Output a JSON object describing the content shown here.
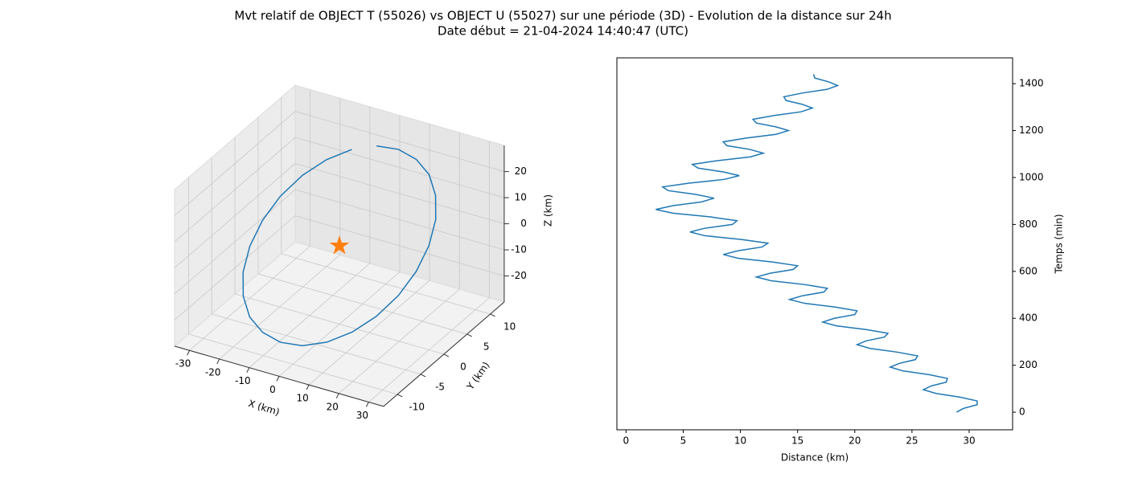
{
  "title": "Mvt relatif de OBJECT T (55026) vs OBJECT U (55027) sur une période (3D) - Evolution de la distance sur 24h",
  "subtitle": "Date début = 21-04-2024 14:40:47 (UTC)",
  "chart_data": [
    {
      "type": "line3d",
      "xlabel": "X (km)",
      "ylabel": "Y (km)",
      "zlabel": "Z (km)",
      "xlim": [
        -35,
        35
      ],
      "ylim": [
        -13,
        13
      ],
      "zlim": [
        -30,
        30
      ],
      "xticks": [
        -30,
        -20,
        -10,
        0,
        10,
        20,
        30
      ],
      "yticks": [
        -10,
        -5,
        0,
        5,
        10
      ],
      "zticks": [
        -20,
        -10,
        0,
        10,
        20
      ],
      "grid": true,
      "color": "#1f77b4",
      "x": [
        0,
        7.8,
        15,
        21.2,
        26,
        29,
        30,
        29,
        26,
        21.2,
        15,
        7.8,
        0,
        -7.8,
        -15,
        -21.2,
        -26,
        -29,
        -30,
        -29,
        -26,
        -21.2,
        -15,
        -7.8
      ],
      "y": [
        8,
        7.7,
        6.9,
        5.7,
        4,
        2.1,
        0,
        -2.1,
        -4,
        -5.7,
        -6.9,
        -7.7,
        -8,
        -7.7,
        -6.9,
        -5.7,
        -4,
        -2.1,
        0,
        2.1,
        4,
        5.7,
        6.9,
        7.7
      ],
      "z": [
        26,
        27.7,
        27.5,
        25.5,
        21.7,
        16.4,
        10,
        3,
        -4.3,
        -11.3,
        -17.5,
        -22.5,
        -26,
        -27.7,
        -27.5,
        -25.5,
        -21.7,
        -16.4,
        -10,
        -3,
        4.3,
        11.3,
        17.5,
        22.5
      ],
      "marker": {
        "x": 0,
        "y": 0,
        "z": 0,
        "color": "#ff7f0e"
      }
    },
    {
      "type": "line",
      "xlabel": "Distance (km)",
      "ylabel": "Temps (min)",
      "xlim": [
        -0.8,
        33.8
      ],
      "ylim": [
        -75,
        1510
      ],
      "xticks": [
        0,
        5,
        10,
        15,
        20,
        25,
        30
      ],
      "yticks": [
        0,
        200,
        400,
        600,
        800,
        1000,
        1200,
        1400
      ],
      "color": "#1f77b4",
      "x": [
        28.9,
        29.5,
        30.7,
        30.7,
        29.2,
        27.1,
        26.0,
        26.7,
        28.0,
        28.1,
        26.5,
        24.2,
        23.1,
        23.9,
        25.3,
        25.5,
        23.7,
        21.3,
        20.2,
        21.0,
        22.6,
        22.9,
        21.0,
        18.4,
        17.2,
        18.2,
        20.0,
        20.2,
        18.3,
        15.6,
        14.3,
        15.4,
        17.3,
        17.6,
        15.6,
        12.7,
        11.4,
        12.6,
        14.6,
        15.0,
        12.8,
        9.8,
        8.5,
        9.8,
        11.9,
        12.4,
        10.1,
        6.9,
        5.6,
        6.9,
        9.3,
        9.7,
        7.4,
        4.1,
        2.6,
        4.1,
        6.6,
        7.7,
        6.1,
        3.7,
        3.2,
        5.5,
        8.6,
        9.9,
        8.5,
        6.3,
        5.8,
        8.0,
        10.9,
        12.0,
        10.8,
        8.8,
        8.5,
        10.5,
        13.1,
        14.2,
        13.1,
        11.4,
        11.1,
        12.9,
        15.3,
        16.3,
        15.4,
        14.0,
        13.8,
        15.4,
        17.6,
        18.5,
        17.7,
        16.5,
        16.4
      ],
      "y": [
        0,
        16,
        32,
        48,
        64,
        80,
        96,
        112,
        128,
        144,
        160,
        176,
        192,
        208,
        224,
        240,
        256,
        272,
        288,
        304,
        320,
        336,
        352,
        368,
        384,
        400,
        416,
        432,
        448,
        464,
        480,
        496,
        512,
        528,
        544,
        560,
        576,
        592,
        608,
        624,
        640,
        656,
        672,
        688,
        704,
        720,
        736,
        752,
        768,
        784,
        800,
        816,
        832,
        848,
        864,
        880,
        896,
        912,
        928,
        944,
        960,
        976,
        992,
        1008,
        1024,
        1040,
        1056,
        1072,
        1088,
        1104,
        1120,
        1136,
        1152,
        1168,
        1184,
        1200,
        1216,
        1232,
        1248,
        1264,
        1280,
        1296,
        1312,
        1328,
        1344,
        1360,
        1376,
        1392,
        1408,
        1424,
        1440
      ]
    }
  ]
}
